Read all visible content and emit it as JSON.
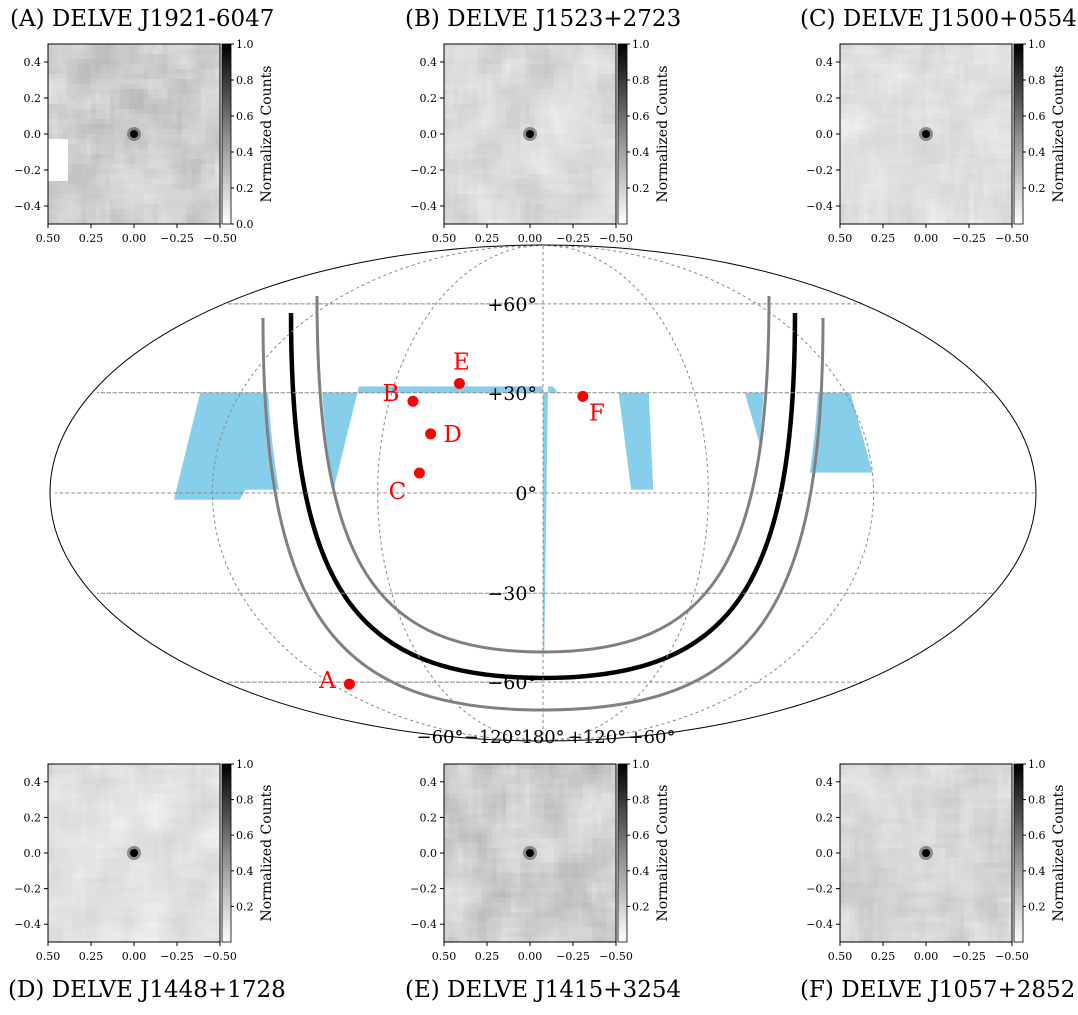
{
  "chart_data": [
    {
      "type": "heatmap",
      "panel": "A",
      "title": "(A) DELVE J1921-6047",
      "xlim": [
        0.5,
        -0.5
      ],
      "ylim": [
        -0.5,
        0.5
      ],
      "xticks": [
        "0.50",
        "0.25",
        "0.00",
        "−0.25",
        "−0.50"
      ],
      "yticks": [
        "0.4",
        "0.2",
        "0.0",
        "−0.2",
        "−0.4"
      ],
      "colorbar_label": "Normalized Counts",
      "colorbar_range": [
        0.0,
        1.0
      ],
      "colorbar_ticks": [
        "0.0",
        "0.2",
        "0.4",
        "0.6",
        "0.8",
        "1.0"
      ],
      "peak": {
        "x": 0.0,
        "y": 0.0,
        "value": 1.0
      },
      "background_level": 0.35,
      "colormap": "gray_r"
    },
    {
      "type": "heatmap",
      "panel": "B",
      "title": "(B) DELVE J1523+2723",
      "xlim": [
        0.5,
        -0.5
      ],
      "ylim": [
        -0.5,
        0.5
      ],
      "xticks": [
        "0.50",
        "0.25",
        "0.00",
        "−0.25",
        "−0.50"
      ],
      "yticks": [
        "0.4",
        "0.2",
        "0.0",
        "−0.2",
        "−0.4"
      ],
      "colorbar_label": "Normalized Counts",
      "colorbar_range": [
        0.0,
        1.0
      ],
      "colorbar_ticks": [
        "0.2",
        "0.4",
        "0.6",
        "0.8",
        "1.0"
      ],
      "peak": {
        "x": 0.0,
        "y": 0.0,
        "value": 1.0
      },
      "background_level": 0.25,
      "colormap": "gray_r"
    },
    {
      "type": "heatmap",
      "panel": "C",
      "title": "(C) DELVE J1500+0554",
      "xlim": [
        0.5,
        -0.5
      ],
      "ylim": [
        -0.5,
        0.5
      ],
      "xticks": [
        "0.50",
        "0.25",
        "0.00",
        "−0.25",
        "−0.50"
      ],
      "yticks": [
        "0.4",
        "0.2",
        "0.0",
        "−0.2",
        "−0.4"
      ],
      "colorbar_label": "Normalized Counts",
      "colorbar_range": [
        0.0,
        1.0
      ],
      "colorbar_ticks": [
        "0.2",
        "0.4",
        "0.6",
        "0.8",
        "1.0"
      ],
      "peak": {
        "x": 0.0,
        "y": 0.0,
        "value": 1.0
      },
      "background_level": 0.22,
      "colormap": "gray_r"
    },
    {
      "type": "heatmap",
      "panel": "D",
      "title": "(D) DELVE J1448+1728",
      "xlim": [
        0.5,
        -0.5
      ],
      "ylim": [
        -0.5,
        0.5
      ],
      "xticks": [
        "0.50",
        "0.25",
        "0.00",
        "−0.25",
        "−0.50"
      ],
      "yticks": [
        "0.4",
        "0.2",
        "0.0",
        "−0.2",
        "−0.4"
      ],
      "colorbar_label": "Normalized Counts",
      "colorbar_range": [
        0.0,
        1.0
      ],
      "colorbar_ticks": [
        "0.2",
        "0.4",
        "0.6",
        "0.8",
        "1.0"
      ],
      "peak": {
        "x": 0.0,
        "y": 0.0,
        "value": 1.0
      },
      "background_level": 0.2,
      "colormap": "gray_r"
    },
    {
      "type": "heatmap",
      "panel": "E",
      "title": "(E) DELVE J1415+3254",
      "xlim": [
        0.5,
        -0.5
      ],
      "ylim": [
        -0.5,
        0.5
      ],
      "xticks": [
        "0.50",
        "0.25",
        "0.00",
        "−0.25",
        "−0.50"
      ],
      "yticks": [
        "0.4",
        "0.2",
        "0.0",
        "−0.2",
        "−0.4"
      ],
      "colorbar_label": "Normalized Counts",
      "colorbar_range": [
        0.0,
        1.0
      ],
      "colorbar_ticks": [
        "0.2",
        "0.4",
        "0.6",
        "0.8",
        "1.0"
      ],
      "peak": {
        "x": 0.0,
        "y": 0.0,
        "value": 1.0
      },
      "background_level": 0.35,
      "colormap": "gray_r"
    },
    {
      "type": "heatmap",
      "panel": "F",
      "title": "(F) DELVE J1057+2852",
      "xlim": [
        0.5,
        -0.5
      ],
      "ylim": [
        -0.5,
        0.5
      ],
      "xticks": [
        "0.50",
        "0.25",
        "0.00",
        "−0.25",
        "−0.50"
      ],
      "yticks": [
        "0.4",
        "0.2",
        "0.0",
        "−0.2",
        "−0.4"
      ],
      "colorbar_label": "Normalized Counts",
      "colorbar_range": [
        0.0,
        1.0
      ],
      "colorbar_ticks": [
        "0.2",
        "0.4",
        "0.6",
        "0.8",
        "1.0"
      ],
      "peak": {
        "x": 0.0,
        "y": 0.0,
        "value": 1.0
      },
      "background_level": 0.28,
      "colormap": "gray_r"
    },
    {
      "type": "scatter",
      "projection": "mollweide",
      "title": "",
      "lat_ticks": [
        "+60°",
        "+30°",
        "0°",
        "−30°",
        "−60°"
      ],
      "lon_ticks": [
        "−60°",
        "−120°",
        "180°",
        "+120°",
        "+60°"
      ],
      "grid": true,
      "footprint_color": "#87ceeb",
      "galactic_plane_color": "#000000",
      "galactic_band_color": "#808080",
      "marker_color": "#ff0000",
      "points": [
        {
          "label": "A",
          "ra_deg": 290.3,
          "dec_deg": -60.8
        },
        {
          "label": "B",
          "ra_deg": 230.8,
          "dec_deg": 27.4
        },
        {
          "label": "C",
          "ra_deg": 225.0,
          "dec_deg": 5.9
        },
        {
          "label": "D",
          "ra_deg": 222.0,
          "dec_deg": 17.5
        },
        {
          "label": "E",
          "ra_deg": 213.8,
          "dec_deg": 32.9
        },
        {
          "label": "F",
          "ra_deg": 164.3,
          "dec_deg": 28.9
        }
      ]
    }
  ]
}
